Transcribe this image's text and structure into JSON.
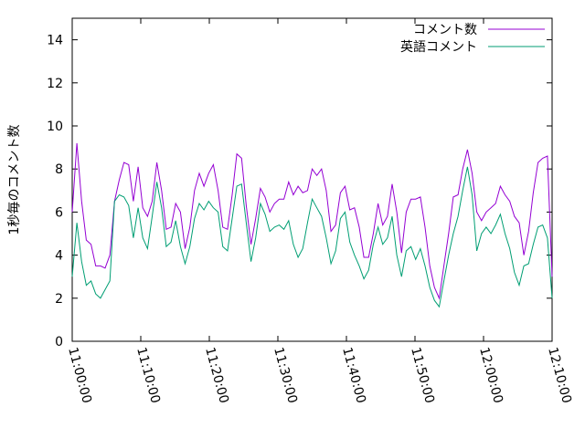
{
  "chart_data": {
    "type": "line",
    "title": "",
    "xlabel": "",
    "ylabel": "1秒毎のコメント数",
    "ylim": [
      0,
      15
    ],
    "y_ticks": [
      "0",
      "2",
      "4",
      "6",
      "8",
      "10",
      "12",
      "14"
    ],
    "x_ticks": [
      "11:00:00",
      "11:10:00",
      "11:20:00",
      "11:30:00",
      "11:40:00",
      "11:50:00",
      "12:00:00",
      "12:10:00"
    ],
    "x_tick_minutes": [
      0,
      10,
      20,
      30,
      40,
      50,
      60,
      70
    ],
    "xlim_minutes": [
      0,
      70
    ],
    "legend_position": "top-right",
    "grid": false,
    "series": [
      {
        "name": "コメント数",
        "color": "#9400d3",
        "values": [
          6.0,
          9.2,
          6.5,
          4.7,
          4.5,
          3.5,
          3.5,
          3.4,
          4.0,
          6.5,
          7.5,
          8.3,
          8.2,
          6.5,
          8.1,
          6.2,
          5.8,
          6.5,
          8.3,
          7.0,
          5.2,
          5.3,
          6.4,
          6.0,
          4.3,
          5.3,
          7.0,
          7.8,
          7.2,
          7.8,
          8.2,
          7.0,
          5.3,
          5.2,
          6.8,
          8.7,
          8.5,
          6.3,
          4.5,
          5.7,
          7.1,
          6.7,
          6.0,
          6.4,
          6.6,
          6.6,
          7.4,
          6.8,
          7.2,
          6.9,
          7.0,
          8.0,
          7.7,
          8.0,
          7.0,
          5.1,
          5.4,
          6.9,
          7.2,
          6.1,
          6.2,
          5.3,
          3.9,
          3.9,
          5.0,
          6.4,
          5.4,
          5.8,
          7.3,
          6.0,
          4.1,
          6.0,
          6.6,
          6.6,
          6.7,
          5.3,
          3.5,
          2.5,
          2.0,
          3.5,
          5.0,
          6.7,
          6.8,
          8.0,
          8.9,
          7.8,
          6.0,
          5.6,
          6.0,
          6.2,
          6.4,
          7.2,
          6.8,
          6.5,
          5.8,
          5.5,
          4.0,
          5.1,
          6.9,
          8.3,
          8.5,
          8.6,
          3.0
        ]
      },
      {
        "name": "英語コメント",
        "color": "#009e73",
        "values": [
          3.0,
          5.5,
          3.7,
          2.6,
          2.8,
          2.2,
          2.0,
          2.4,
          2.8,
          6.5,
          6.8,
          6.7,
          6.3,
          4.8,
          6.2,
          4.8,
          4.3,
          5.8,
          7.4,
          6.2,
          4.4,
          4.6,
          5.6,
          4.4,
          3.6,
          4.4,
          5.7,
          6.4,
          6.1,
          6.5,
          6.2,
          6.0,
          4.4,
          4.2,
          5.7,
          7.2,
          7.3,
          5.5,
          3.7,
          4.8,
          6.4,
          5.9,
          5.1,
          5.3,
          5.4,
          5.2,
          5.6,
          4.5,
          3.9,
          4.3,
          5.5,
          6.6,
          6.2,
          5.8,
          4.8,
          3.6,
          4.2,
          5.7,
          6.0,
          4.6,
          4.0,
          3.5,
          2.9,
          3.3,
          4.5,
          5.3,
          4.5,
          4.8,
          5.8,
          4.0,
          3.0,
          4.2,
          4.4,
          3.8,
          4.3,
          3.5,
          2.5,
          1.9,
          1.6,
          2.8,
          4.0,
          5.0,
          5.8,
          7.0,
          8.1,
          6.8,
          4.2,
          5.0,
          5.3,
          5.0,
          5.4,
          5.9,
          5.0,
          4.3,
          3.2,
          2.6,
          3.5,
          3.6,
          4.5,
          5.3,
          5.4,
          4.8,
          2.0
        ]
      }
    ]
  }
}
